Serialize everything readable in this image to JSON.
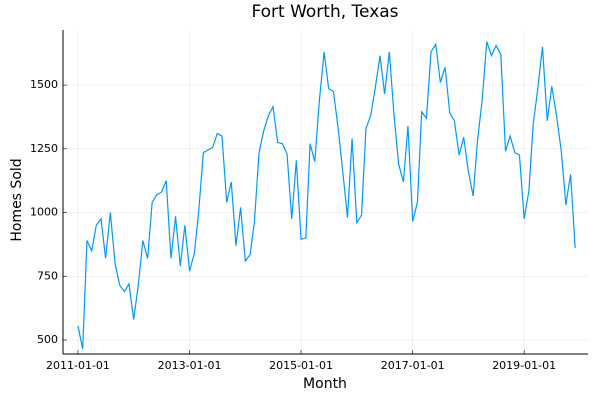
{
  "chart_data": {
    "type": "line",
    "title": "Fort Worth, Texas",
    "x_label": "Month",
    "y_label": "Homes Sold",
    "x": [
      "2011-01-01",
      "2011-02-01",
      "2011-03-01",
      "2011-04-01",
      "2011-05-01",
      "2011-06-01",
      "2011-07-01",
      "2011-08-01",
      "2011-09-01",
      "2011-10-01",
      "2011-11-01",
      "2011-12-01",
      "2012-01-01",
      "2012-02-01",
      "2012-03-01",
      "2012-04-01",
      "2012-05-01",
      "2012-06-01",
      "2012-07-01",
      "2012-08-01",
      "2012-09-01",
      "2012-10-01",
      "2012-11-01",
      "2012-12-01",
      "2013-01-01",
      "2013-02-01",
      "2013-03-01",
      "2013-04-01",
      "2013-05-01",
      "2013-06-01",
      "2013-07-01",
      "2013-08-01",
      "2013-09-01",
      "2013-10-01",
      "2013-11-01",
      "2013-12-01",
      "2014-01-01",
      "2014-02-01",
      "2014-03-01",
      "2014-04-01",
      "2014-05-01",
      "2014-06-01",
      "2014-07-01",
      "2014-08-01",
      "2014-09-01",
      "2014-10-01",
      "2014-11-01",
      "2014-12-01",
      "2015-01-01",
      "2015-02-01",
      "2015-03-01",
      "2015-04-01",
      "2015-05-01",
      "2015-06-01",
      "2015-07-01",
      "2015-08-01",
      "2015-09-01",
      "2015-10-01",
      "2015-11-01",
      "2015-12-01",
      "2016-01-01",
      "2016-02-01",
      "2016-03-01",
      "2016-04-01",
      "2016-05-01",
      "2016-06-01",
      "2016-07-01",
      "2016-08-01",
      "2016-09-01",
      "2016-10-01",
      "2016-11-01",
      "2016-12-01",
      "2017-01-01",
      "2017-02-01",
      "2017-03-01",
      "2017-04-01",
      "2017-05-01",
      "2017-06-01",
      "2017-07-01",
      "2017-08-01",
      "2017-09-01",
      "2017-10-01",
      "2017-11-01",
      "2017-12-01",
      "2018-01-01",
      "2018-02-01",
      "2018-03-01",
      "2018-04-01",
      "2018-05-01",
      "2018-06-01",
      "2018-07-01",
      "2018-08-01",
      "2018-09-01",
      "2018-10-01",
      "2018-11-01",
      "2018-12-01",
      "2019-01-01",
      "2019-02-01",
      "2019-03-01",
      "2019-04-01",
      "2019-05-01",
      "2019-06-01",
      "2019-07-01",
      "2019-08-01",
      "2019-09-01",
      "2019-10-01",
      "2019-11-01",
      "2019-12-01"
    ],
    "series": [
      {
        "color": "#009af9",
        "values": [
          555,
          465,
          890,
          850,
          950,
          975,
          820,
          1000,
          800,
          715,
          690,
          720,
          580,
          720,
          890,
          820,
          1040,
          1070,
          1080,
          1125,
          820,
          985,
          790,
          950,
          770,
          840,
          1000,
          1235,
          1245,
          1255,
          1310,
          1300,
          1040,
          1120,
          870,
          1020,
          810,
          835,
          960,
          1235,
          1320,
          1380,
          1415,
          1275,
          1270,
          1230,
          975,
          1205,
          895,
          900,
          1270,
          1200,
          1440,
          1630,
          1485,
          1475,
          1330,
          1160,
          980,
          1290,
          960,
          990,
          1330,
          1380,
          1490,
          1615,
          1465,
          1630,
          1380,
          1190,
          1120,
          1340,
          965,
          1040,
          1395,
          1370,
          1630,
          1660,
          1510,
          1570,
          1390,
          1360,
          1225,
          1295,
          1160,
          1065,
          1280,
          1440,
          1670,
          1615,
          1655,
          1620,
          1240,
          1300,
          1235,
          1225,
          975,
          1085,
          1345,
          1490,
          1650,
          1360,
          1495,
          1380,
          1240,
          1030,
          1150,
          860
        ]
      }
    ],
    "xlim": [
      "2010-09-25",
      "2020-02-23"
    ],
    "xticks": [
      "2011-01-01",
      "2013-01-01",
      "2015-01-01",
      "2017-01-01",
      "2019-01-01"
    ],
    "ylim": [
      445,
      1716
    ],
    "yticks": [
      500,
      750,
      1000,
      1250,
      1500
    ],
    "grid": true
  }
}
